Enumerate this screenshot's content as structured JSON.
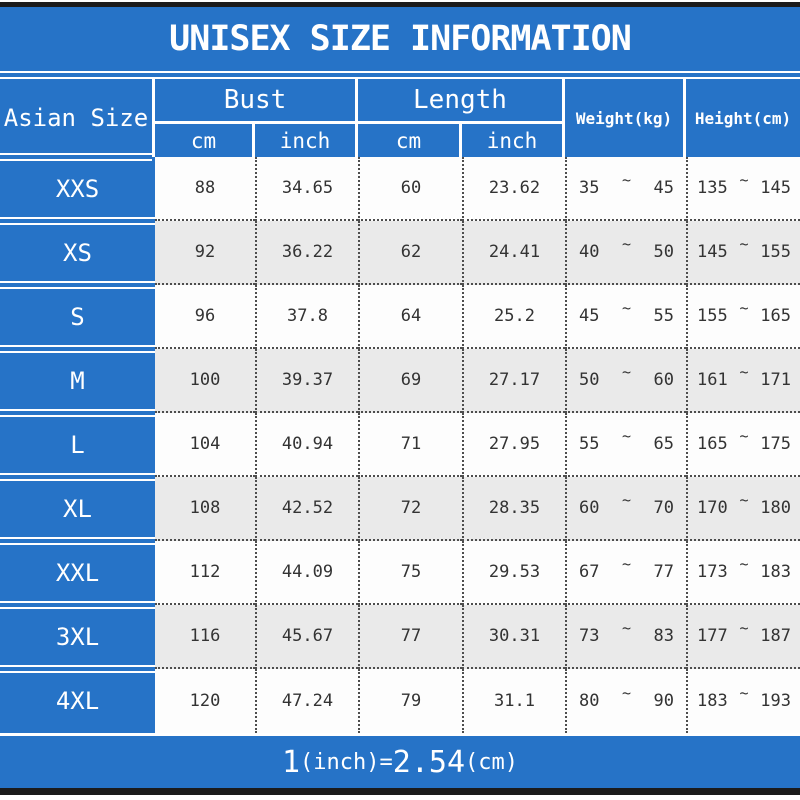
{
  "title": "UNISEX SIZE INFORMATION",
  "header": {
    "size_label": "Asian Size",
    "bust": "Bust",
    "length": "Length",
    "cm": "cm",
    "inch": "inch",
    "weight": "Weight(kg)",
    "height": "Height(cm)"
  },
  "tilde": "~",
  "rows": [
    {
      "size": "XXS",
      "bust_cm": "88",
      "bust_inch": "34.65",
      "len_cm": "60",
      "len_inch": "23.62",
      "w_min": "35",
      "w_max": "45",
      "h_min": "135",
      "h_max": "145"
    },
    {
      "size": "XS",
      "bust_cm": "92",
      "bust_inch": "36.22",
      "len_cm": "62",
      "len_inch": "24.41",
      "w_min": "40",
      "w_max": "50",
      "h_min": "145",
      "h_max": "155"
    },
    {
      "size": "S",
      "bust_cm": "96",
      "bust_inch": "37.8",
      "len_cm": "64",
      "len_inch": "25.2",
      "w_min": "45",
      "w_max": "55",
      "h_min": "155",
      "h_max": "165"
    },
    {
      "size": "M",
      "bust_cm": "100",
      "bust_inch": "39.37",
      "len_cm": "69",
      "len_inch": "27.17",
      "w_min": "50",
      "w_max": "60",
      "h_min": "161",
      "h_max": "171"
    },
    {
      "size": "L",
      "bust_cm": "104",
      "bust_inch": "40.94",
      "len_cm": "71",
      "len_inch": "27.95",
      "w_min": "55",
      "w_max": "65",
      "h_min": "165",
      "h_max": "175"
    },
    {
      "size": "XL",
      "bust_cm": "108",
      "bust_inch": "42.52",
      "len_cm": "72",
      "len_inch": "28.35",
      "w_min": "60",
      "w_max": "70",
      "h_min": "170",
      "h_max": "180"
    },
    {
      "size": "XXL",
      "bust_cm": "112",
      "bust_inch": "44.09",
      "len_cm": "75",
      "len_inch": "29.53",
      "w_min": "67",
      "w_max": "77",
      "h_min": "173",
      "h_max": "183"
    },
    {
      "size": "3XL",
      "bust_cm": "116",
      "bust_inch": "45.67",
      "len_cm": "77",
      "len_inch": "30.31",
      "w_min": "73",
      "w_max": "83",
      "h_min": "177",
      "h_max": "187"
    },
    {
      "size": "4XL",
      "bust_cm": "120",
      "bust_inch": "47.24",
      "len_cm": "79",
      "len_inch": "31.1",
      "w_min": "80",
      "w_max": "90",
      "h_min": "183",
      "h_max": "193"
    }
  ],
  "footer": {
    "num1": "1",
    "unit1": "(inch)",
    "eq": "=",
    "num2": "2.54",
    "unit2": "(cm)"
  },
  "colors": {
    "accent_blue": "#2673c7",
    "row_alt_gray": "#eaeaea",
    "row_white": "#fdfdfd",
    "edge_bar_black": "#1b1b1b",
    "data_text": "#333333"
  }
}
